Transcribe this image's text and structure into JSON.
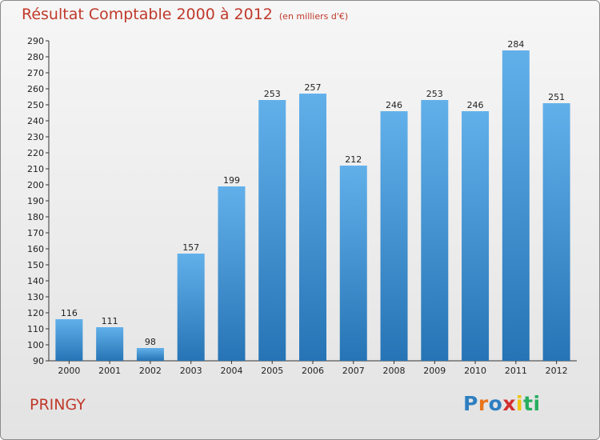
{
  "header": {
    "title": "Résultat Comptable 2000 à 2012",
    "unit": "(en milliers d'€)"
  },
  "footer": {
    "commune": "PRINGY",
    "logo_letters": [
      "P",
      "r",
      "o",
      "x",
      "i",
      "t",
      "i"
    ],
    "logo_colors": [
      "#2e7fc1",
      "#e8761f",
      "#2e7fc1",
      "#d32f2f",
      "#f1c40f",
      "#27ae60",
      "#27ae60"
    ]
  },
  "colors": {
    "title": "#c0392b",
    "bar_light": "#62b0ea",
    "bar_dark": "#2674b5"
  },
  "chart_data": {
    "type": "bar",
    "title": "Résultat Comptable 2000 à 2012",
    "ylabel": "",
    "xlabel": "",
    "categories": [
      "2000",
      "2001",
      "2002",
      "2003",
      "2004",
      "2005",
      "2006",
      "2007",
      "2008",
      "2009",
      "2010",
      "2011",
      "2012"
    ],
    "values": [
      116,
      111,
      98,
      157,
      199,
      253,
      257,
      212,
      246,
      253,
      246,
      284,
      251
    ],
    "ylim": [
      90,
      290
    ],
    "ytick_step": 10,
    "grid": false
  }
}
